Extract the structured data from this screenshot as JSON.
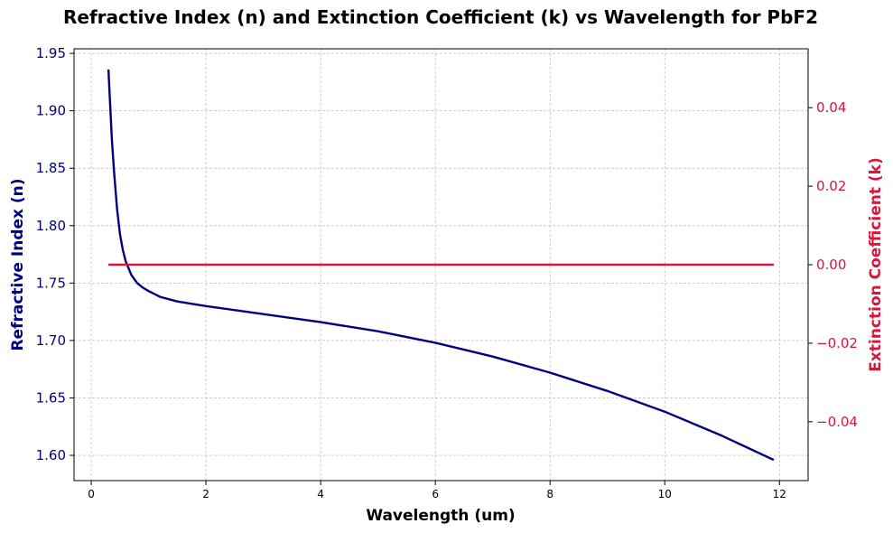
{
  "chart_data": {
    "type": "line",
    "title": "Refractive Index (n) and Extinction Coefficient (k) vs Wavelength for PbF2",
    "xlabel": "Wavelength (um)",
    "ylabel_left": "Refractive Index (n)",
    "ylabel_right": "Extinction Coefficient (k)",
    "xlim": [
      -0.3,
      12.5
    ],
    "ylim_left": [
      1.578,
      1.954
    ],
    "ylim_right": [
      -0.055,
      0.055
    ],
    "x_ticks": [
      0,
      2,
      4,
      6,
      8,
      10,
      12
    ],
    "x_tick_labels": [
      "0",
      "2",
      "4",
      "6",
      "8",
      "10",
      "12"
    ],
    "y_left_ticks": [
      1.6,
      1.65,
      1.7,
      1.75,
      1.8,
      1.85,
      1.9,
      1.95
    ],
    "y_left_tick_labels": [
      "1.60",
      "1.65",
      "1.70",
      "1.75",
      "1.80",
      "1.85",
      "1.90",
      "1.95"
    ],
    "y_right_ticks": [
      -0.04,
      -0.02,
      0.0,
      0.02,
      0.04
    ],
    "y_right_tick_labels": [
      "−0.04",
      "−0.02",
      "0.00",
      "0.02",
      "0.04"
    ],
    "grid": true,
    "colors": {
      "n": "#000080",
      "k": "#DC143C"
    },
    "series": [
      {
        "axis": "left",
        "x": [
          0.3,
          0.33,
          0.36,
          0.4,
          0.45,
          0.5,
          0.55,
          0.6,
          0.7,
          0.8,
          0.9,
          1.0,
          1.2,
          1.5,
          2.0,
          3.0,
          4.0,
          5.0,
          6.0,
          7.0,
          8.0,
          9.0,
          10.0,
          11.0,
          11.9
        ],
        "y": [
          1.936,
          1.905,
          1.875,
          1.845,
          1.815,
          1.793,
          1.779,
          1.769,
          1.757,
          1.75,
          1.746,
          1.743,
          1.738,
          1.734,
          1.73,
          1.723,
          1.716,
          1.708,
          1.698,
          1.686,
          1.672,
          1.656,
          1.638,
          1.617,
          1.596
        ]
      },
      {
        "axis": "right",
        "x": [
          0.3,
          11.9
        ],
        "y": [
          0.0,
          0.0
        ]
      }
    ]
  }
}
